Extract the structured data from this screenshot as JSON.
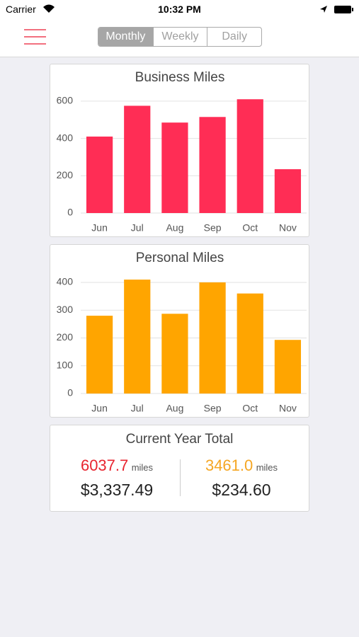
{
  "status_bar": {
    "carrier": "Carrier",
    "time": "10:32 PM"
  },
  "segments": [
    "Monthly",
    "Weekly",
    "Daily"
  ],
  "selected_segment": 0,
  "chart_data": [
    {
      "type": "bar",
      "title": "Business Miles",
      "categories": [
        "Jun",
        "Jul",
        "Aug",
        "Sep",
        "Oct",
        "Nov"
      ],
      "values": [
        410,
        575,
        485,
        515,
        610,
        235
      ],
      "color": "#ff2d55",
      "ylim": [
        0,
        645
      ],
      "yticks": [
        0,
        200,
        400,
        600
      ],
      "grid": true
    },
    {
      "type": "bar",
      "title": "Personal Miles",
      "categories": [
        "Jun",
        "Jul",
        "Aug",
        "Sep",
        "Oct",
        "Nov"
      ],
      "values": [
        280,
        410,
        287,
        400,
        360,
        193
      ],
      "color": "#ffa500",
      "ylim": [
        0,
        433
      ],
      "yticks": [
        0,
        100,
        200,
        300,
        400
      ],
      "grid": true
    }
  ],
  "totals": {
    "title": "Current Year Total",
    "business": {
      "miles": "6037.7",
      "unit": "miles",
      "amount": "$3,337.49",
      "color": "#e8242f"
    },
    "personal": {
      "miles": "3461.0",
      "unit": "miles",
      "amount": "$234.60",
      "color": "#f5a623"
    }
  }
}
